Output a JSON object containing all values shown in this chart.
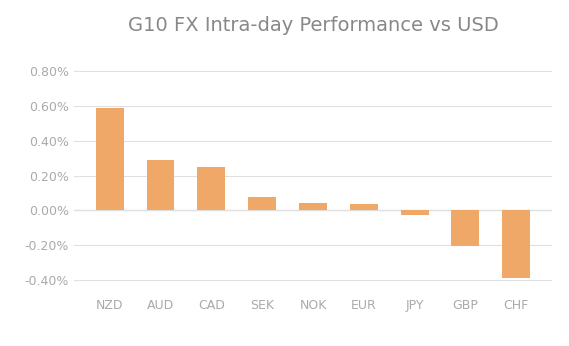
{
  "title": "G10 FX Intra-day Performance vs USD",
  "categories": [
    "NZD",
    "AUD",
    "CAD",
    "SEK",
    "NOK",
    "EUR",
    "JPY",
    "GBP",
    "CHF"
  ],
  "values": [
    0.0059,
    0.0029,
    0.0025,
    0.00075,
    0.00042,
    0.0004,
    -0.00028,
    -0.00205,
    -0.00385
  ],
  "bar_color": "#F0A868",
  "background_color": "#ffffff",
  "ylim": [
    -0.0048,
    0.0095
  ],
  "yticks": [
    -0.004,
    -0.002,
    0.0,
    0.002,
    0.004,
    0.006,
    0.008
  ],
  "title_fontsize": 14,
  "tick_fontsize": 9,
  "title_color": "#888888",
  "tick_color": "#aaaaaa",
  "grid_color": "#e0e0e0"
}
